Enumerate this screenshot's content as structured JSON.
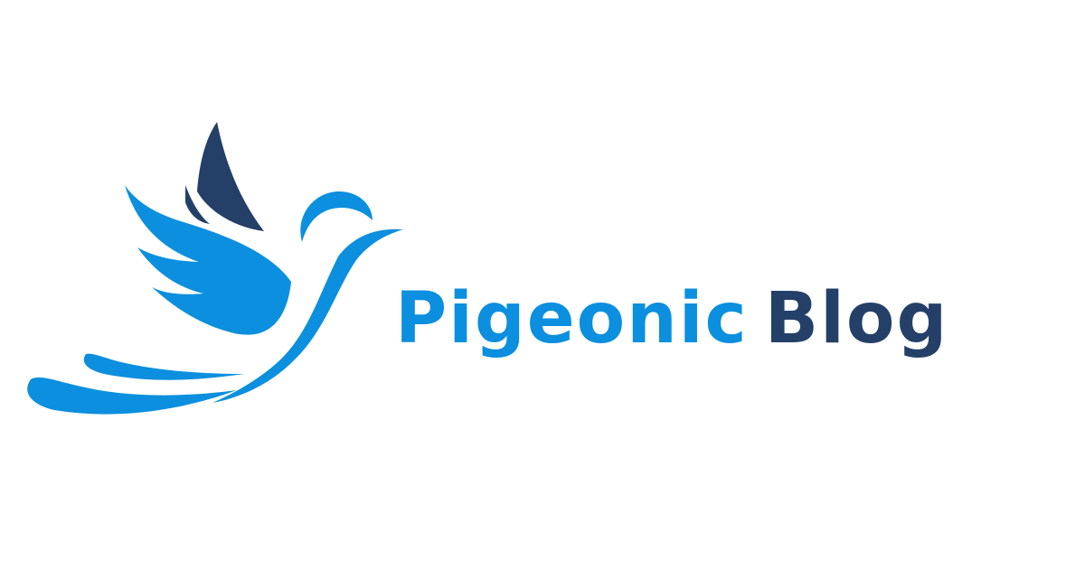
{
  "brand": {
    "name_part_1": "Pigeonic",
    "name_part_2": "Blog",
    "colors": {
      "light_blue": "#0b8fde",
      "dark_navy": "#244068",
      "background": "#ffffff"
    },
    "icon": "pigeon-logo-icon"
  }
}
